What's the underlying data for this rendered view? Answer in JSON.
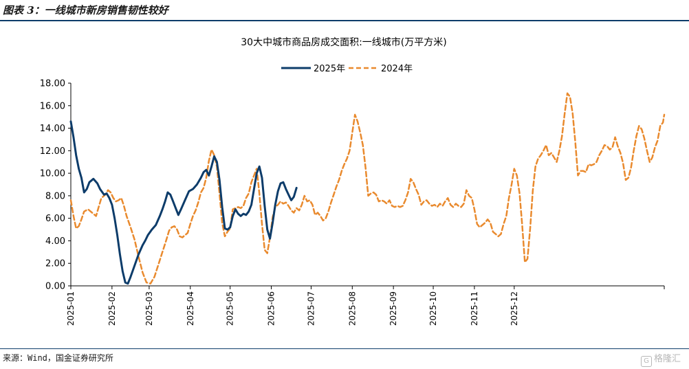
{
  "figure": {
    "title": "图表 3：一线城市新房销售韧性较好",
    "source": "来源：Wind，国金证券研究所",
    "watermark": "格隆汇"
  },
  "chart_data": {
    "type": "line",
    "title": "30大中城市商品房成交面积:一线城市(万平方米)",
    "xlabel": "",
    "ylabel": "",
    "ylim": [
      0,
      18
    ],
    "yticks": [
      "0.00",
      "2.00",
      "4.00",
      "6.00",
      "8.00",
      "10.00",
      "12.00",
      "14.00",
      "16.00",
      "18.00"
    ],
    "xticks": [
      "2025-01",
      "2025-02",
      "2025-03",
      "2025-04",
      "2025-05",
      "2025-06",
      "2025-07",
      "2025-08",
      "2025-09",
      "2025-10",
      "2025-11",
      "2025-12"
    ],
    "legend_position": "top-center",
    "grid": false,
    "x_unit": "day index from start of year (0 = 2025-01-01)",
    "series": [
      {
        "name": "2025年",
        "color": "#0d3c6a",
        "style": "solid",
        "points": [
          [
            0,
            14.6
          ],
          [
            2,
            13.2
          ],
          [
            4,
            11.6
          ],
          [
            6,
            10.4
          ],
          [
            8,
            9.6
          ],
          [
            10,
            8.3
          ],
          [
            12,
            8.6
          ],
          [
            14,
            9.2
          ],
          [
            17,
            9.5
          ],
          [
            20,
            9.1
          ],
          [
            22,
            8.6
          ],
          [
            25,
            8.1
          ],
          [
            27,
            8.2
          ],
          [
            29,
            7.8
          ],
          [
            31,
            7.2
          ],
          [
            33,
            6.0
          ],
          [
            35,
            4.5
          ],
          [
            37,
            2.8
          ],
          [
            39,
            1.3
          ],
          [
            41,
            0.3
          ],
          [
            43,
            0.2
          ],
          [
            45,
            0.8
          ],
          [
            48,
            1.8
          ],
          [
            51,
            2.8
          ],
          [
            54,
            3.6
          ],
          [
            56,
            4.0
          ],
          [
            58,
            4.5
          ],
          [
            61,
            5.0
          ],
          [
            64,
            5.4
          ],
          [
            67,
            6.2
          ],
          [
            69,
            6.8
          ],
          [
            71,
            7.5
          ],
          [
            73,
            8.3
          ],
          [
            75,
            8.1
          ],
          [
            77,
            7.5
          ],
          [
            79,
            6.9
          ],
          [
            81,
            6.3
          ],
          [
            83,
            6.8
          ],
          [
            86,
            7.6
          ],
          [
            89,
            8.4
          ],
          [
            92,
            8.6
          ],
          [
            95,
            9.0
          ],
          [
            98,
            9.6
          ],
          [
            100,
            10.1
          ],
          [
            102,
            10.3
          ],
          [
            104,
            9.8
          ],
          [
            106,
            10.6
          ],
          [
            108,
            11.5
          ],
          [
            110,
            11.0
          ],
          [
            112,
            9.4
          ],
          [
            114,
            7.0
          ],
          [
            116,
            5.1
          ],
          [
            118,
            5.0
          ],
          [
            120,
            5.2
          ],
          [
            122,
            6.2
          ],
          [
            124,
            6.8
          ],
          [
            126,
            6.4
          ],
          [
            128,
            6.2
          ],
          [
            130,
            6.4
          ],
          [
            132,
            6.3
          ],
          [
            134,
            6.6
          ],
          [
            136,
            7.2
          ],
          [
            138,
            8.6
          ],
          [
            140,
            10.0
          ],
          [
            142,
            10.6
          ],
          [
            144,
            9.6
          ],
          [
            146,
            7.1
          ],
          [
            148,
            5.0
          ],
          [
            150,
            4.2
          ],
          [
            152,
            5.6
          ],
          [
            154,
            7.2
          ],
          [
            156,
            8.4
          ],
          [
            158,
            9.1
          ],
          [
            160,
            9.2
          ],
          [
            162,
            8.6
          ],
          [
            164,
            8.1
          ],
          [
            166,
            7.6
          ],
          [
            168,
            7.9
          ],
          [
            170,
            8.7
          ]
        ]
      },
      {
        "name": "2024年",
        "color": "#e98a2e",
        "style": "dashed",
        "points": [
          [
            0,
            7.6
          ],
          [
            2,
            6.2
          ],
          [
            4,
            5.1
          ],
          [
            6,
            5.3
          ],
          [
            8,
            5.9
          ],
          [
            10,
            6.6
          ],
          [
            13,
            6.8
          ],
          [
            16,
            6.5
          ],
          [
            19,
            6.2
          ],
          [
            21,
            7.0
          ],
          [
            23,
            7.8
          ],
          [
            26,
            8.1
          ],
          [
            28,
            8.5
          ],
          [
            30,
            8.3
          ],
          [
            32,
            7.8
          ],
          [
            34,
            7.5
          ],
          [
            36,
            7.6
          ],
          [
            38,
            7.8
          ],
          [
            40,
            7.1
          ],
          [
            42,
            6.2
          ],
          [
            45,
            5.2
          ],
          [
            48,
            4.1
          ],
          [
            51,
            2.6
          ],
          [
            54,
            1.2
          ],
          [
            57,
            0.3
          ],
          [
            60,
            0.2
          ],
          [
            63,
            0.8
          ],
          [
            66,
            1.9
          ],
          [
            69,
            3.0
          ],
          [
            72,
            4.1
          ],
          [
            74,
            4.9
          ],
          [
            76,
            5.2
          ],
          [
            78,
            5.3
          ],
          [
            80,
            5.0
          ],
          [
            82,
            4.4
          ],
          [
            84,
            4.3
          ],
          [
            86,
            4.5
          ],
          [
            88,
            4.7
          ],
          [
            90,
            5.5
          ],
          [
            92,
            6.2
          ],
          [
            94,
            6.7
          ],
          [
            96,
            7.4
          ],
          [
            98,
            8.3
          ],
          [
            100,
            8.7
          ],
          [
            102,
            9.6
          ],
          [
            104,
            11.1
          ],
          [
            106,
            12.1
          ],
          [
            108,
            11.6
          ],
          [
            110,
            10.6
          ],
          [
            112,
            8.2
          ],
          [
            114,
            5.6
          ],
          [
            116,
            4.4
          ],
          [
            118,
            4.8
          ],
          [
            120,
            5.1
          ],
          [
            122,
            6.8
          ],
          [
            124,
            6.9
          ],
          [
            126,
            7.0
          ],
          [
            128,
            6.9
          ],
          [
            130,
            7.1
          ],
          [
            132,
            7.8
          ],
          [
            134,
            8.2
          ],
          [
            136,
            9.2
          ],
          [
            138,
            9.8
          ],
          [
            140,
            10.4
          ],
          [
            142,
            8.2
          ],
          [
            144,
            5.5
          ],
          [
            146,
            3.2
          ],
          [
            148,
            2.9
          ],
          [
            150,
            4.3
          ],
          [
            152,
            6.1
          ],
          [
            154,
            7.0
          ],
          [
            156,
            7.2
          ],
          [
            158,
            7.5
          ],
          [
            160,
            7.3
          ],
          [
            162,
            7.4
          ],
          [
            164,
            7.1
          ],
          [
            166,
            6.7
          ],
          [
            168,
            6.5
          ],
          [
            170,
            6.9
          ],
          [
            172,
            6.7
          ],
          [
            174,
            7.2
          ],
          [
            176,
            8.0
          ],
          [
            178,
            7.5
          ],
          [
            180,
            7.6
          ],
          [
            182,
            7.2
          ],
          [
            184,
            6.3
          ],
          [
            186,
            6.5
          ],
          [
            188,
            6.2
          ],
          [
            190,
            5.8
          ],
          [
            192,
            6.0
          ],
          [
            194,
            6.6
          ],
          [
            196,
            7.4
          ],
          [
            198,
            8.1
          ],
          [
            200,
            8.8
          ],
          [
            202,
            9.4
          ],
          [
            204,
            10.2
          ],
          [
            206,
            10.8
          ],
          [
            208,
            11.3
          ],
          [
            210,
            12.0
          ],
          [
            212,
            13.6
          ],
          [
            214,
            15.2
          ],
          [
            216,
            14.6
          ],
          [
            218,
            13.6
          ],
          [
            220,
            12.5
          ],
          [
            222,
            10.5
          ],
          [
            224,
            8.0
          ],
          [
            226,
            8.2
          ],
          [
            228,
            8.3
          ],
          [
            230,
            8.1
          ],
          [
            232,
            7.5
          ],
          [
            234,
            7.6
          ],
          [
            236,
            7.5
          ],
          [
            238,
            7.3
          ],
          [
            240,
            7.6
          ],
          [
            242,
            7.1
          ],
          [
            244,
            7.0
          ],
          [
            246,
            7.1
          ],
          [
            248,
            7.0
          ],
          [
            250,
            7.1
          ],
          [
            252,
            7.6
          ],
          [
            254,
            8.3
          ],
          [
            256,
            9.5
          ],
          [
            258,
            9.2
          ],
          [
            260,
            8.6
          ],
          [
            262,
            8.1
          ],
          [
            264,
            7.2
          ],
          [
            266,
            7.5
          ],
          [
            268,
            7.6
          ],
          [
            270,
            7.3
          ],
          [
            272,
            7.1
          ],
          [
            274,
            7.2
          ],
          [
            276,
            7.0
          ],
          [
            278,
            7.3
          ],
          [
            280,
            7.1
          ],
          [
            282,
            7.5
          ],
          [
            284,
            7.8
          ],
          [
            286,
            7.2
          ],
          [
            288,
            7.0
          ],
          [
            290,
            7.3
          ],
          [
            292,
            7.1
          ],
          [
            294,
            7.0
          ],
          [
            296,
            7.3
          ],
          [
            298,
            8.5
          ],
          [
            300,
            8.0
          ],
          [
            302,
            7.8
          ],
          [
            304,
            6.8
          ],
          [
            306,
            5.5
          ],
          [
            308,
            5.2
          ],
          [
            310,
            5.4
          ],
          [
            312,
            5.6
          ],
          [
            314,
            5.9
          ],
          [
            316,
            5.6
          ],
          [
            318,
            4.8
          ],
          [
            320,
            4.6
          ],
          [
            322,
            4.4
          ],
          [
            324,
            4.6
          ],
          [
            326,
            5.5
          ],
          [
            328,
            6.2
          ],
          [
            330,
            7.8
          ],
          [
            332,
            9.0
          ],
          [
            334,
            10.4
          ],
          [
            336,
            9.8
          ],
          [
            338,
            8.2
          ],
          [
            340,
            5.4
          ],
          [
            342,
            2.1
          ],
          [
            344,
            2.4
          ],
          [
            346,
            5.1
          ],
          [
            348,
            8.5
          ],
          [
            350,
            10.6
          ],
          [
            352,
            11.3
          ],
          [
            354,
            11.6
          ],
          [
            356,
            12.0
          ],
          [
            358,
            12.5
          ],
          [
            360,
            11.6
          ],
          [
            362,
            11.8
          ],
          [
            364,
            11.4
          ],
          [
            366,
            11.0
          ],
          [
            368,
            12.0
          ],
          [
            370,
            13.3
          ],
          [
            372,
            15.3
          ],
          [
            374,
            17.1
          ],
          [
            376,
            16.8
          ],
          [
            378,
            15.3
          ],
          [
            380,
            12.8
          ],
          [
            382,
            9.8
          ],
          [
            384,
            10.2
          ],
          [
            386,
            10.2
          ],
          [
            388,
            10.1
          ],
          [
            390,
            10.8
          ],
          [
            392,
            10.7
          ],
          [
            394,
            10.8
          ],
          [
            396,
            11.0
          ],
          [
            398,
            11.6
          ],
          [
            400,
            12.0
          ],
          [
            402,
            12.5
          ],
          [
            404,
            12.4
          ],
          [
            406,
            12.1
          ],
          [
            408,
            12.3
          ],
          [
            410,
            13.2
          ],
          [
            412,
            12.4
          ],
          [
            414,
            11.8
          ],
          [
            416,
            10.9
          ],
          [
            418,
            9.4
          ],
          [
            420,
            9.6
          ],
          [
            422,
            10.5
          ],
          [
            424,
            12.0
          ],
          [
            426,
            13.3
          ],
          [
            428,
            14.2
          ],
          [
            430,
            13.9
          ],
          [
            432,
            13.1
          ],
          [
            434,
            12.0
          ],
          [
            436,
            11.0
          ],
          [
            438,
            11.4
          ],
          [
            440,
            12.3
          ],
          [
            442,
            12.9
          ],
          [
            444,
            14.2
          ],
          [
            446,
            14.5
          ],
          [
            447,
            15.2
          ]
        ]
      }
    ]
  }
}
